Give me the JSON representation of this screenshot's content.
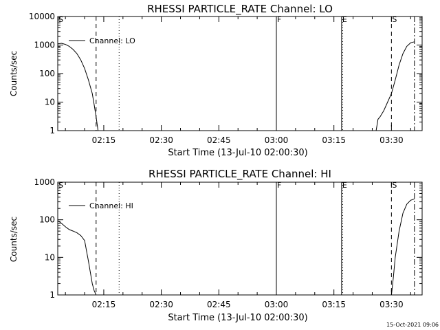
{
  "timestamp": "15-Oct-2021 09:06",
  "chart_data": [
    {
      "type": "line",
      "title": "RHESSI PARTICLE_RATE Channel: LO",
      "xlabel": "Start Time (13-Jul-10 02:00:30)",
      "ylabel": "Counts/sec",
      "yscale": "log",
      "xlim": [
        "02:03",
        "03:38"
      ],
      "ylim": [
        1,
        10000
      ],
      "x_ticks": [
        "02:15",
        "02:30",
        "02:45",
        "03:00",
        "03:15",
        "03:30"
      ],
      "y_ticks": [
        "1",
        "10",
        "100",
        "1000",
        "10000"
      ],
      "legend": {
        "position": "top-left",
        "entries": [
          "Channel: LO"
        ]
      },
      "grid": false,
      "markers": [
        {
          "label": "S",
          "time": "02:03",
          "style": "none"
        },
        {
          "label": "",
          "time": "02:13",
          "style": "dashed"
        },
        {
          "label": "",
          "time": "02:19",
          "style": "dotted"
        },
        {
          "label": "F",
          "time": "03:00",
          "style": "solid"
        },
        {
          "label": "E",
          "time": "03:17",
          "style": "solid"
        },
        {
          "label": "",
          "time": "03:17.3",
          "style": "dotted"
        },
        {
          "label": "S",
          "time": "03:30",
          "style": "dashed"
        },
        {
          "label": "",
          "time": "03:36",
          "style": "dashdot"
        }
      ],
      "series": [
        {
          "name": "Channel: LO",
          "segments": [
            {
              "x": [
                "02:03",
                "02:04",
                "02:05",
                "02:06",
                "02:07",
                "02:08",
                "02:09",
                "02:10",
                "02:11",
                "02:12",
                "02:12.5",
                "02:13",
                "02:13.5"
              ],
              "y": [
                1100,
                1150,
                1050,
                900,
                700,
                500,
                300,
                150,
                60,
                20,
                8,
                3,
                1
              ]
            },
            {
              "x": [
                "03:26",
                "03:26.5",
                "03:27",
                "03:28",
                "03:29",
                "03:30",
                "03:31",
                "03:32",
                "03:33",
                "03:34",
                "03:35",
                "03:36"
              ],
              "y": [
                1,
                2.5,
                3,
                5,
                10,
                20,
                60,
                200,
                500,
                900,
                1200,
                1300
              ]
            }
          ]
        }
      ]
    },
    {
      "type": "line",
      "title": "RHESSI PARTICLE_RATE Channel: HI",
      "xlabel": "Start Time (13-Jul-10 02:00:30)",
      "ylabel": "Counts/sec",
      "yscale": "log",
      "xlim": [
        "02:03",
        "03:38"
      ],
      "ylim": [
        1,
        1000
      ],
      "x_ticks": [
        "02:15",
        "02:30",
        "02:45",
        "03:00",
        "03:15",
        "03:30"
      ],
      "y_ticks": [
        "1",
        "10",
        "100",
        "1000"
      ],
      "legend": {
        "position": "top-left",
        "entries": [
          "Channel: HI"
        ]
      },
      "grid": false,
      "markers": [
        {
          "label": "S",
          "time": "02:03",
          "style": "none"
        },
        {
          "label": "",
          "time": "02:13",
          "style": "dashed"
        },
        {
          "label": "",
          "time": "02:19",
          "style": "dotted"
        },
        {
          "label": "F",
          "time": "03:00",
          "style": "solid"
        },
        {
          "label": "E",
          "time": "03:17",
          "style": "solid"
        },
        {
          "label": "",
          "time": "03:17.3",
          "style": "dotted"
        },
        {
          "label": "S",
          "time": "03:30",
          "style": "dashed"
        },
        {
          "label": "",
          "time": "03:36",
          "style": "dashdot"
        }
      ],
      "series": [
        {
          "name": "Channel: HI",
          "segments": [
            {
              "x": [
                "02:03",
                "02:04",
                "02:05",
                "02:06",
                "02:07",
                "02:08",
                "02:09",
                "02:10",
                "02:10.5",
                "02:11",
                "02:11.5",
                "02:12",
                "02:12.5",
                "02:13"
              ],
              "y": [
                95,
                80,
                65,
                55,
                50,
                45,
                38,
                28,
                15,
                8,
                4,
                2,
                1.3,
                1
              ]
            },
            {
              "x": [
                "03:30",
                "03:30.5",
                "03:31",
                "03:32",
                "03:33",
                "03:34",
                "03:35",
                "03:36"
              ],
              "y": [
                1,
                3,
                10,
                50,
                150,
                260,
                330,
                360
              ]
            }
          ]
        }
      ]
    }
  ]
}
